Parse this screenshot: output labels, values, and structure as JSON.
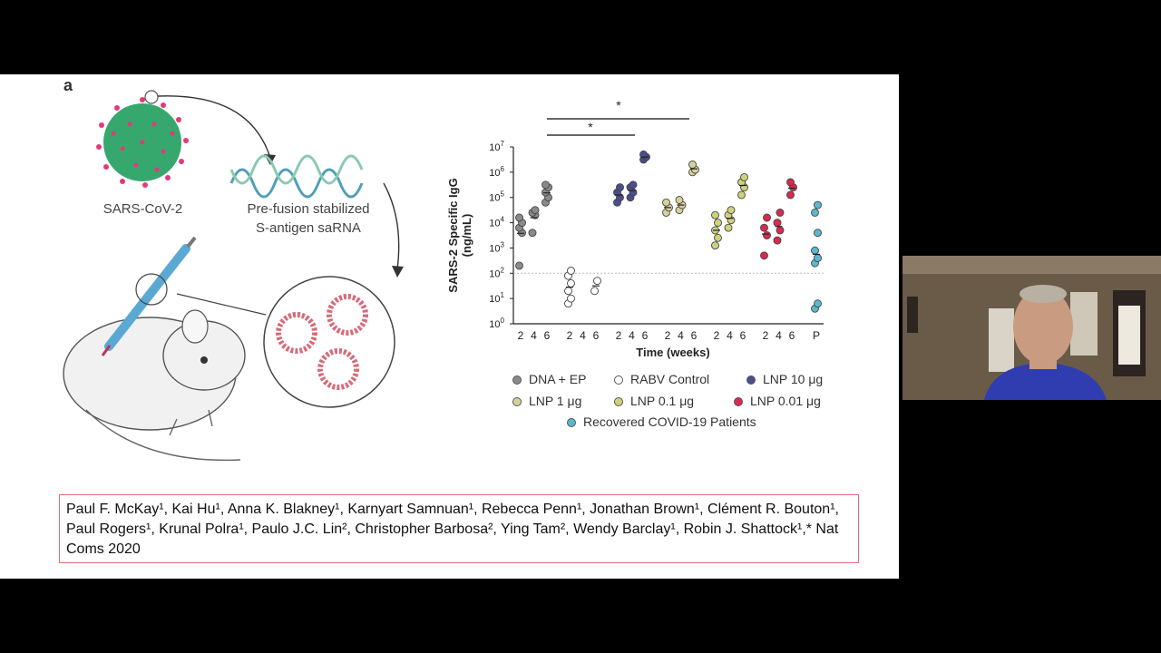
{
  "slide": {
    "panel_letter": "a",
    "virus_label": "SARS-CoV-2",
    "rna_label": "Pre-fusion stabilized\nS-antigen saRNA"
  },
  "legend": [
    {
      "label": "DNA + EP",
      "color": "#8a8a8a",
      "hollow": false
    },
    {
      "label": "RABV Control",
      "color": "#ffffff",
      "hollow": true
    },
    {
      "label": "LNP 10 μg",
      "color": "#4b4d8f",
      "hollow": false
    },
    {
      "label": "LNP 1 μg",
      "color": "#d8d29a",
      "hollow": false
    },
    {
      "label": "LNP 0.1 μg",
      "color": "#cfd27a",
      "hollow": false
    },
    {
      "label": "LNP 0.01 μg",
      "color": "#d8294f",
      "hollow": false
    },
    {
      "label": "Recovered COVID-19 Patients",
      "color": "#5bb8d0",
      "hollow": false
    }
  ],
  "chart_data": {
    "type": "scatter",
    "ylabel": "SARS-2 Specific IgG\n(ng/mL)",
    "xlabel": "Time (weeks)",
    "y_scale": "log10",
    "ylim": [
      1,
      10000000
    ],
    "ytick_exponents": [
      "0",
      "1",
      "2",
      "3",
      "4",
      "5",
      "6",
      "7"
    ],
    "threshold_log": 2,
    "significance": [
      "*",
      "*"
    ],
    "groups": [
      {
        "name": "DNA + EP",
        "color": "#8a8a8a",
        "hollow": false,
        "weeks": [
          {
            "week": "2",
            "log_values": [
              2.3,
              3.6,
              3.8,
              4.0,
              4.2
            ]
          },
          {
            "week": "4",
            "log_values": [
              3.6,
              4.3,
              4.4,
              4.5
            ]
          },
          {
            "week": "6",
            "log_values": [
              4.8,
              5.0,
              5.2,
              5.4,
              5.5
            ]
          }
        ]
      },
      {
        "name": "RABV Control",
        "color": "#ffffff",
        "hollow": true,
        "weeks": [
          {
            "week": "2",
            "log_values": [
              0.8,
              1.0,
              1.3,
              1.6,
              1.9,
              2.1
            ]
          },
          {
            "week": "4",
            "log_values": []
          },
          {
            "week": "6",
            "log_values": [
              1.3,
              1.7
            ]
          }
        ]
      },
      {
        "name": "LNP 10 μg",
        "color": "#4b4d8f",
        "hollow": false,
        "weeks": [
          {
            "week": "2",
            "log_values": [
              4.8,
              5.0,
              5.2,
              5.4
            ]
          },
          {
            "week": "4",
            "log_values": [
              5.0,
              5.2,
              5.4,
              5.5
            ]
          },
          {
            "week": "6",
            "log_values": [
              6.5,
              6.6,
              6.7
            ]
          }
        ]
      },
      {
        "name": "LNP 1 μg",
        "color": "#d8d29a",
        "hollow": false,
        "weeks": [
          {
            "week": "2",
            "log_values": [
              4.4,
              4.6,
              4.8
            ]
          },
          {
            "week": "4",
            "log_values": [
              4.5,
              4.7,
              4.9
            ]
          },
          {
            "week": "6",
            "log_values": [
              6.0,
              6.1,
              6.3
            ]
          }
        ]
      },
      {
        "name": "LNP 0.1 μg",
        "color": "#cfd27a",
        "hollow": false,
        "weeks": [
          {
            "week": "2",
            "log_values": [
              3.1,
              3.4,
              3.7,
              4.0,
              4.3
            ]
          },
          {
            "week": "4",
            "log_values": [
              3.8,
              4.1,
              4.3,
              4.5
            ]
          },
          {
            "week": "6",
            "log_values": [
              5.1,
              5.4,
              5.6,
              5.8
            ]
          }
        ]
      },
      {
        "name": "LNP 0.01 μg",
        "color": "#d8294f",
        "hollow": false,
        "weeks": [
          {
            "week": "2",
            "log_values": [
              2.7,
              3.5,
              3.8,
              4.2
            ]
          },
          {
            "week": "4",
            "log_values": [
              3.3,
              3.7,
              4.0,
              4.4
            ]
          },
          {
            "week": "6",
            "log_values": [
              5.1,
              5.4,
              5.6
            ]
          }
        ]
      },
      {
        "name": "Recovered COVID-19 Patients",
        "color": "#5bb8d0",
        "hollow": false,
        "weeks": [
          {
            "week": "P",
            "log_values": [
              0.6,
              0.8,
              2.4,
              2.6,
              2.9,
              3.6,
              4.4,
              4.7
            ]
          }
        ]
      }
    ]
  },
  "citation": "Paul F. McKay¹, Kai Hu¹, Anna K. Blakney¹, Karnyart Samnuan¹, Rebecca Penn¹, Jonathan Brown¹, Clément R. Bouton¹, Paul Rogers¹, Krunal Polra¹, Paulo J.C. Lin², Christopher Barbosa², Ying Tam², Wendy Barclay¹, Robin J. Shattock¹,* Nat Coms 2020"
}
